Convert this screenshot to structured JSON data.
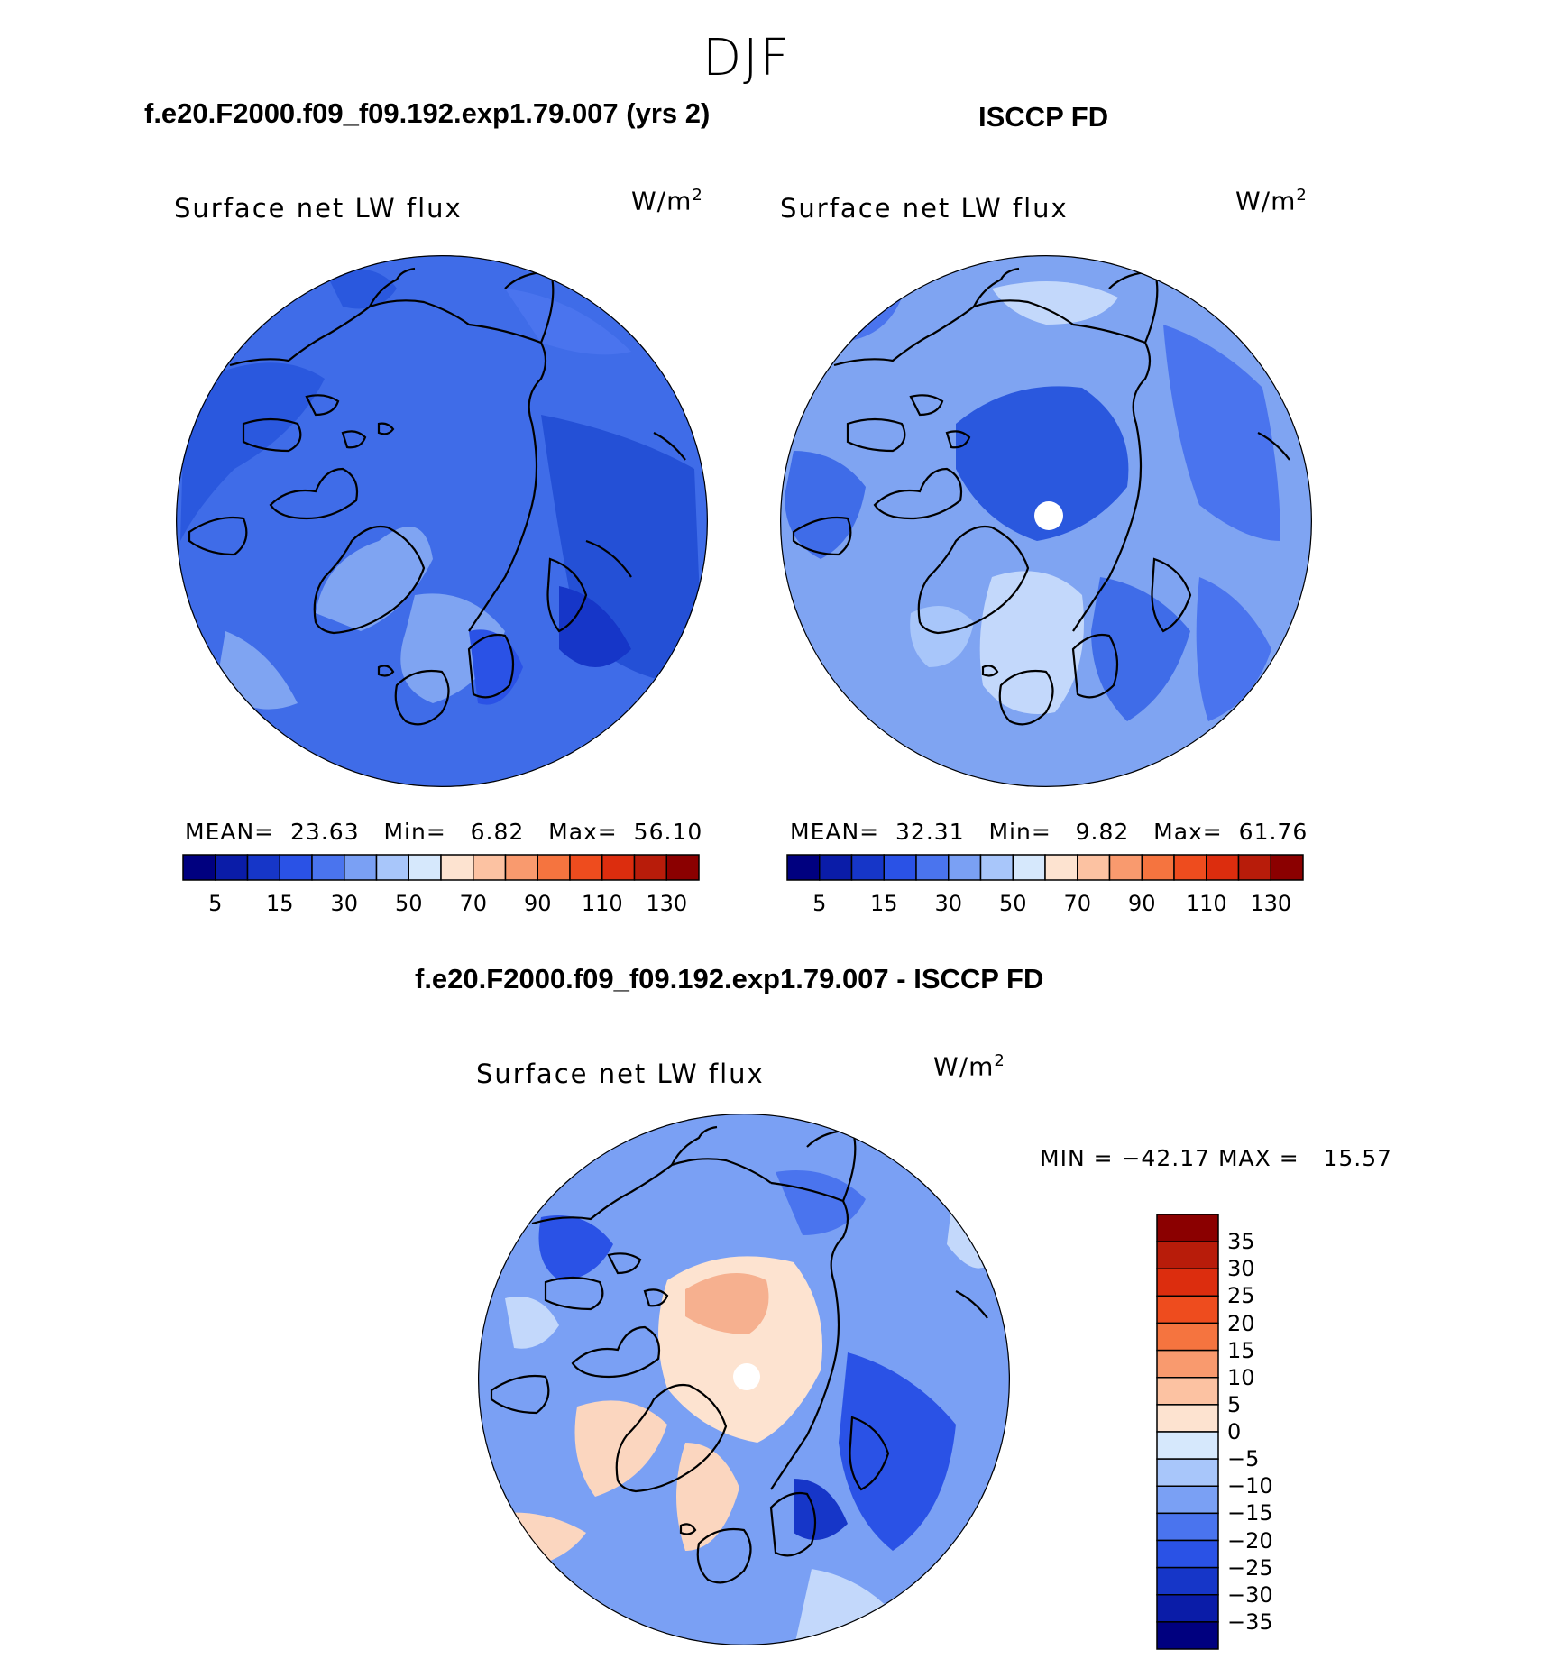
{
  "season": "DJF",
  "panels": [
    {
      "title": "f.e20.F2000.f09_f09.192.exp1.79.007 (yrs 2)",
      "variable": "Surface net LW flux",
      "units": "W/m",
      "units_exp": "2",
      "stats": {
        "mean_label": "MEAN=",
        "mean": "23.63",
        "min_label": "Min=",
        "min": "6.82",
        "max_label": "Max=",
        "max": "56.10"
      }
    },
    {
      "title": "ISCCP FD",
      "variable": "Surface net LW flux",
      "units": "W/m",
      "units_exp": "2",
      "stats": {
        "mean_label": "MEAN=",
        "mean": "32.31",
        "min_label": "Min=",
        "min": "9.82",
        "max_label": "Max=",
        "max": "61.76"
      }
    },
    {
      "title": "f.e20.F2000.f09_f09.192.exp1.79.007 - ISCCP FD",
      "variable": "Surface net LW flux",
      "units": "W/m",
      "units_exp": "2",
      "stats_line": "MIN = −42.17 MAX =   15.57"
    }
  ],
  "colorbar_fields": {
    "colors": [
      "#00007f",
      "#0a1ca8",
      "#1636c8",
      "#2a52e6",
      "#4a74ee",
      "#7aa0f4",
      "#a8c6fa",
      "#d6e8fc",
      "#fde3d0",
      "#fcc2a2",
      "#f99a6e",
      "#f5743f",
      "#ee4c1e",
      "#dc2d0e",
      "#b81c0a",
      "#8b0000"
    ],
    "tick_labels": [
      "5",
      "15",
      "30",
      "50",
      "70",
      "90",
      "110",
      "130"
    ]
  },
  "colorbar_diff": {
    "colors": [
      "#00007f",
      "#0a1ca8",
      "#1636c8",
      "#2a52e6",
      "#4a74ee",
      "#7aa0f4",
      "#a8c6fa",
      "#d6e8fc",
      "#fde3d0",
      "#fcc2a2",
      "#f99a6e",
      "#f5743f",
      "#ee4c1e",
      "#dc2d0e",
      "#b81c0a",
      "#8b0000"
    ],
    "tick_labels": [
      "35",
      "30",
      "25",
      "20",
      "15",
      "10",
      "5",
      "0",
      "−5",
      "−10",
      "−15",
      "−20",
      "−25",
      "−30",
      "−35"
    ]
  },
  "map_colors": {
    "ocean_mid": "#3f6ce8",
    "ocean_deep": "#2450d6",
    "land_light": "#7fa4f2",
    "pale": "#c3d8fb",
    "warm": "#fbd6bf",
    "warm2": "#f6b08f",
    "coast": "#000000"
  }
}
